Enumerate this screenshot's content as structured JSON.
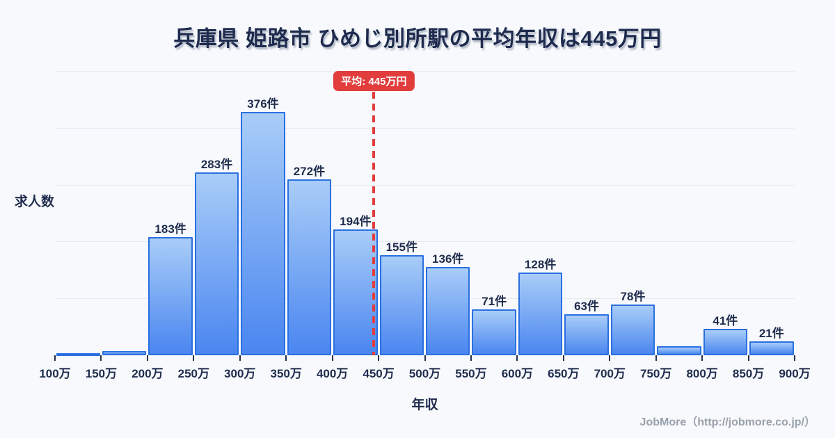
{
  "page": {
    "background": "#f7f9fc",
    "footer": "JobMore（http://jobmore.co.jp/）"
  },
  "chart_data": {
    "type": "bar",
    "title": "兵庫県 姫路市 ひめじ別所駅の平均年収は445万円",
    "xlabel": "年収",
    "ylabel": "求人数",
    "x_range": [
      100,
      900
    ],
    "bin_width": 50,
    "x_tick_labels": [
      "100万",
      "150万",
      "200万",
      "250万",
      "300万",
      "350万",
      "400万",
      "450万",
      "500万",
      "550万",
      "600万",
      "650万",
      "700万",
      "750万",
      "800万",
      "850万",
      "900万"
    ],
    "values": [
      2,
      6,
      183,
      283,
      376,
      272,
      194,
      155,
      136,
      71,
      128,
      63,
      78,
      14,
      41,
      21
    ],
    "bar_labels": [
      "",
      "",
      "183件",
      "283件",
      "376件",
      "272件",
      "194件",
      "155件",
      "136件",
      "71件",
      "128件",
      "63件",
      "78件",
      "",
      "41件",
      "21件"
    ],
    "mean": {
      "value": 445,
      "label": "平均: 445万円"
    },
    "ylim": [
      0,
      400
    ],
    "grid": true,
    "legend": null,
    "colors": {
      "background": "#f7f9fc",
      "bar_border": "#2a6fe0",
      "bar_gradient_top": "#a9cdf8",
      "bar_gradient_bottom": "#4a86f0",
      "mean_line": "#e23d3d",
      "mean_badge_bg": "#e23d3d",
      "mean_badge_text": "#ffffff",
      "text": "#1f2c4d",
      "grid_line": "#e5eaf2",
      "footer_text": "#99a1ac"
    }
  }
}
